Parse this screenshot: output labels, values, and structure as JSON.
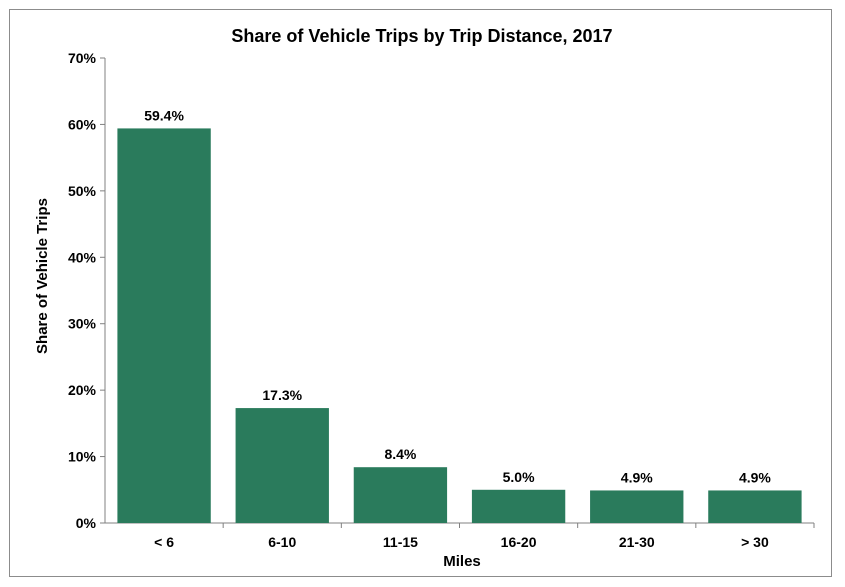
{
  "chart_data": {
    "type": "bar",
    "title": "Share of Vehicle Trips by Trip Distance, 2017",
    "xlabel": "Miles",
    "ylabel": "Share of Vehicle Trips",
    "categories": [
      "< 6",
      "6-10",
      "11-15",
      "16-20",
      "21-30",
      "> 30"
    ],
    "values": [
      59.4,
      17.3,
      8.4,
      5.0,
      4.9,
      4.9
    ],
    "data_labels": [
      "59.4%",
      "17.3%",
      "8.4%",
      "5.0%",
      "4.9%",
      "4.9%"
    ],
    "ylim": [
      0,
      70
    ],
    "yticks": [
      0,
      10,
      20,
      30,
      40,
      50,
      60,
      70
    ],
    "ytick_labels": [
      "0%",
      "10%",
      "20%",
      "30%",
      "40%",
      "50%",
      "60%",
      "70%"
    ],
    "grid": false,
    "legend": "none",
    "bar_color": "#2a7b5c",
    "axis_color": "#808080"
  }
}
